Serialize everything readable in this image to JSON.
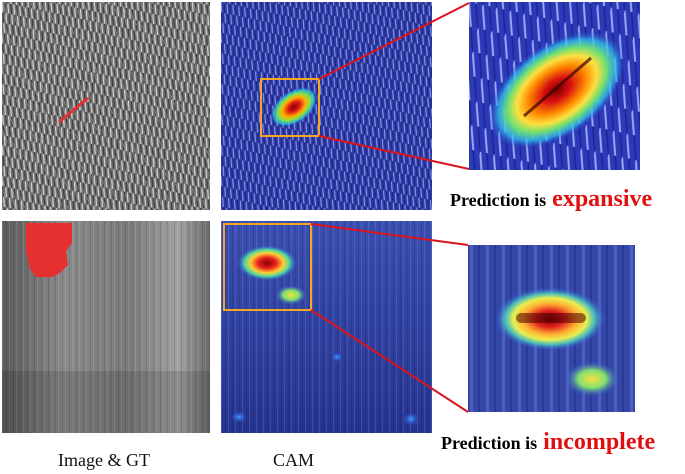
{
  "captions": {
    "image_gt": "Image & GT",
    "cam": "CAM"
  },
  "row1": {
    "prediction_lead": "Prediction is",
    "prediction_word": "expansive"
  },
  "row2": {
    "prediction_lead": "Prediction is",
    "prediction_word": "incomplete"
  },
  "colors": {
    "zoom_box": "#f5a623",
    "connector": "#d9141b",
    "highlight_text": "#e01010",
    "gt_mask": "#e53030"
  }
}
